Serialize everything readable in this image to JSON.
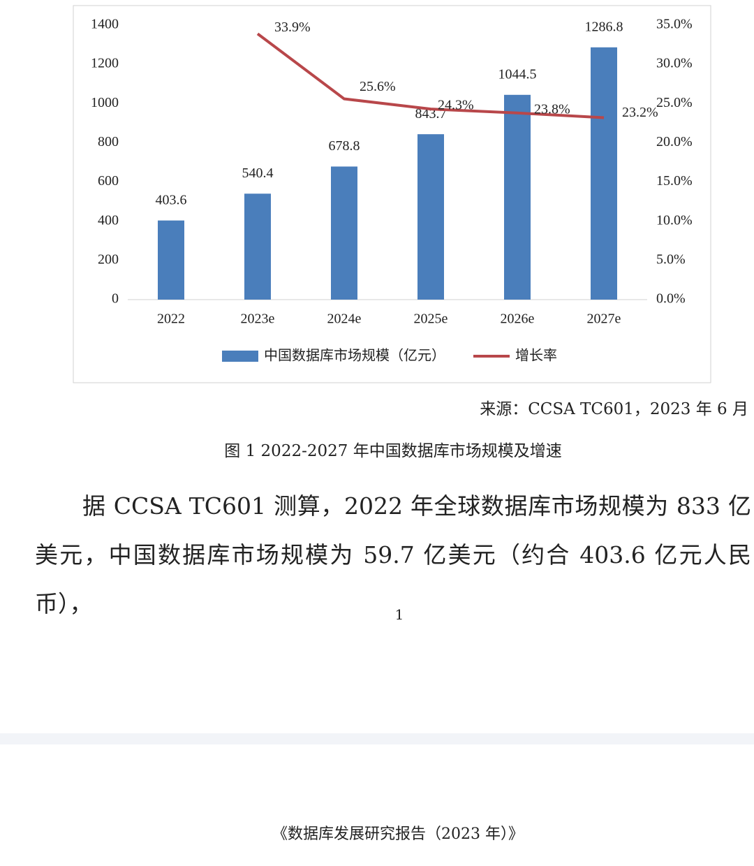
{
  "chart_data": {
    "type": "bar",
    "categories": [
      "2022",
      "2023e",
      "2024e",
      "2025e",
      "2026e",
      "2027e"
    ],
    "series": [
      {
        "name": "中国数据库市场规模（亿元）",
        "color": "#4a7ebb",
        "type": "bar",
        "values": [
          403.6,
          540.4,
          678.8,
          843.7,
          1044.5,
          1286.8
        ]
      },
      {
        "name": "增长率",
        "color": "#b8474a",
        "type": "line",
        "axis": "y2",
        "values": [
          null,
          33.9,
          25.6,
          24.3,
          23.8,
          23.2
        ],
        "value_labels": [
          null,
          "33.9%",
          "25.6%",
          "24.3%",
          "23.8%",
          "23.2%"
        ]
      }
    ],
    "ylim": [
      0,
      1400
    ],
    "yticks": [
      0,
      200,
      400,
      600,
      800,
      1000,
      1200,
      1400
    ],
    "y2lim": [
      0,
      35
    ],
    "y2ticks": [
      {
        "value": 0,
        "label": "0.0%"
      },
      {
        "value": 5,
        "label": "5.0%"
      },
      {
        "value": 10,
        "label": "10.0%"
      },
      {
        "value": 15,
        "label": "15.0%"
      },
      {
        "value": 20,
        "label": "20.0%"
      },
      {
        "value": 25,
        "label": "25.0%"
      },
      {
        "value": 30,
        "label": "30.0%"
      },
      {
        "value": 35,
        "label": "35.0%"
      }
    ],
    "legend": "bottom"
  },
  "source": "来源：CCSA TC601，2023 年 6 月",
  "caption": "图 1 2022-2027 年中国数据库市场规模及增速",
  "paragraph": "据 CCSA TC601 测算，2022 年全球数据库市场规模为 833 亿美元，中国数据库市场规模为 59.7 亿美元（约合 403.6 亿元人民币），",
  "page_number": "1",
  "footer": "《数据库发展研究报告（2023 年）》"
}
